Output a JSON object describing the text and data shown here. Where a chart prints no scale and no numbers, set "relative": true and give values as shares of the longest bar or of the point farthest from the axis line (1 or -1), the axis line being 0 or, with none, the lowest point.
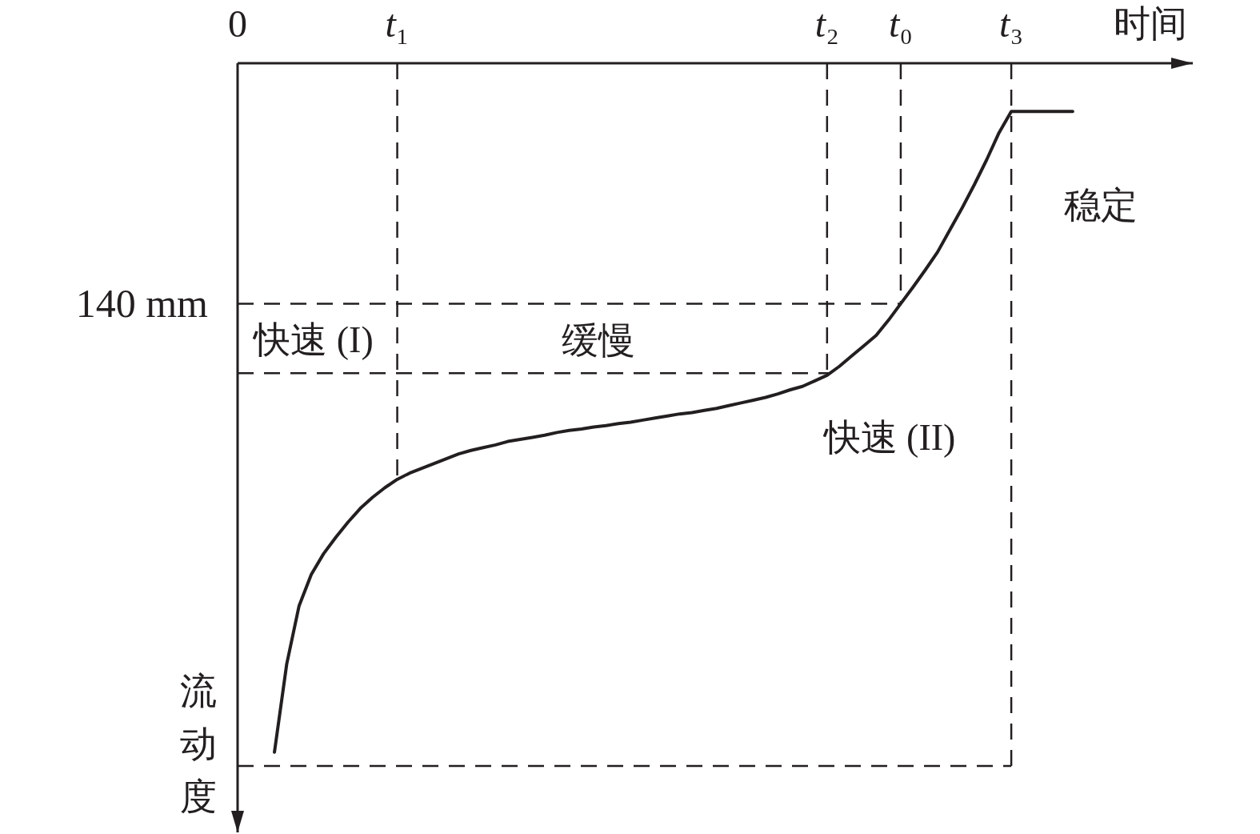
{
  "chart_data": {
    "type": "line",
    "relative": true,
    "color": "#231f20",
    "marker": "none",
    "categories": [
      "0",
      null,
      null,
      null,
      null,
      null,
      null,
      null,
      null,
      null,
      null,
      null,
      null,
      "t₁",
      null,
      null,
      null,
      null,
      null,
      null,
      null,
      null,
      null,
      null,
      null,
      null,
      null,
      null,
      null,
      null,
      null,
      null,
      null,
      null,
      null,
      null,
      null,
      null,
      null,
      null,
      null,
      null,
      null,
      null,
      null,
      null,
      null,
      null,
      "t₂",
      null,
      null,
      null,
      null,
      null,
      "t₀",
      null,
      null,
      null,
      null,
      null,
      null,
      null,
      null,
      "t₃",
      null,
      null,
      null,
      null,
      null,
      null,
      null,
      null,
      null,
      null,
      null,
      null,
      null,
      null
    ],
    "values": [
      null,
      null,
      null,
      -1.0,
      -0.872,
      -0.788,
      -0.742,
      -0.712,
      -0.688,
      -0.666,
      -0.646,
      -0.63,
      -0.616,
      -0.604,
      -0.595,
      -0.588,
      -0.581,
      -0.574,
      -0.567,
      -0.562,
      -0.558,
      -0.554,
      -0.549,
      -0.546,
      -0.543,
      -0.54,
      -0.536,
      -0.533,
      -0.531,
      -0.528,
      -0.526,
      -0.523,
      -0.521,
      -0.518,
      -0.515,
      -0.512,
      -0.509,
      -0.507,
      -0.504,
      -0.501,
      -0.497,
      -0.493,
      -0.489,
      -0.485,
      -0.48,
      -0.474,
      -0.469,
      -0.461,
      -0.453,
      -0.44,
      -0.425,
      -0.41,
      -0.395,
      -0.373,
      -0.349,
      -0.325,
      -0.3,
      -0.274,
      -0.242,
      -0.21,
      -0.176,
      -0.14,
      -0.101,
      -0.07,
      -0.07,
      -0.07,
      -0.07,
      -0.07,
      -0.07,
      null,
      null,
      null,
      null,
      null,
      null,
      null,
      null,
      null
    ],
    "xlabel": "时间",
    "ylabel": "流动度",
    "ref_lines": [
      {
        "axis": "x",
        "value": "t₁",
        "color": "#231f20",
        "line_style": "dashed"
      },
      {
        "axis": "x",
        "value": "t₂",
        "color": "#231f20",
        "line_style": "dashed"
      },
      {
        "axis": "x",
        "value": "t₀",
        "color": "#231f20",
        "line_style": "dashed"
      },
      {
        "axis": "x",
        "value": "t₃",
        "color": "#231f20",
        "line_style": "dashed"
      },
      {
        "axis": "y",
        "value": -0.349,
        "label": "140 mm",
        "color": "#231f20",
        "line_style": "dashed"
      },
      {
        "axis": "y",
        "value": -0.45,
        "color": "#231f20",
        "line_style": "dashed"
      },
      {
        "axis": "y",
        "value": -1.02,
        "color": "#231f20",
        "line_style": "dashed"
      }
    ],
    "annotations": [
      "快速 (I)",
      "缓慢",
      "快速 (II)",
      "稳定"
    ]
  }
}
